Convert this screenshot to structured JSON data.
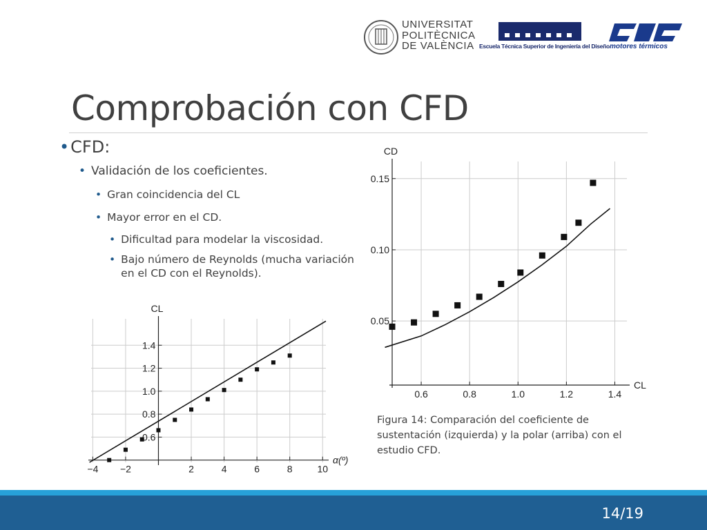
{
  "header": {
    "upv_lines": [
      "UNIVERSITAT",
      "POLITÈCNICA",
      "DE VALÈNCIA"
    ],
    "etsid_name": "Escuela Técnica Superior de Ingeniería del Diseño",
    "cmt_name": "motores térmicos"
  },
  "slide": {
    "title": "Comprobación con CFD",
    "page": "14/19",
    "bullets": {
      "l1": "CFD:",
      "l2": "Validación de los coeficientes.",
      "l3a": "Gran coincidencia del CL",
      "l3b": "Mayor error en el CD.",
      "l4a": "Dificultad para modelar la viscosidad.",
      "l4b": "Bajo número de Reynolds (mucha variación en el CD con el Reynolds)."
    },
    "caption": "Figura 14: Comparación del coeficiente de sustentación (izquierda) y la polar (arriba) con el estudio CFD."
  },
  "colors": {
    "accent": "#1f5f93",
    "accent_light": "#27a1d9",
    "text": "#404040"
  },
  "chart_data": [
    {
      "type": "scatter",
      "xlabel": "α(º)",
      "ylabel": "CL",
      "xticks": [
        -4,
        -2,
        2,
        4,
        6,
        8,
        10
      ],
      "yticks": [
        0.6,
        0.8,
        1.0,
        1.2,
        1.4
      ],
      "xlim": [
        -4.1,
        10.2
      ],
      "ylim": [
        0.38,
        1.63
      ],
      "grid": true,
      "points": [
        [
          -3,
          0.4
        ],
        [
          -2,
          0.49
        ],
        [
          -1,
          0.58
        ],
        [
          0,
          0.66
        ],
        [
          1,
          0.75
        ],
        [
          2,
          0.84
        ],
        [
          3,
          0.93
        ],
        [
          4,
          1.01
        ],
        [
          5,
          1.1
        ],
        [
          6,
          1.19
        ],
        [
          7,
          1.25
        ],
        [
          8,
          1.31
        ]
      ],
      "line": [
        [
          -4.2,
          0.38
        ],
        [
          10.2,
          1.61
        ]
      ]
    },
    {
      "type": "scatter",
      "xlabel": "CL",
      "ylabel": "CD",
      "xticks": [
        0.6,
        0.8,
        1.0,
        1.2,
        1.4
      ],
      "yticks": [
        0.05,
        0.1,
        0.15
      ],
      "xlim": [
        0.48,
        1.45
      ],
      "ylim": [
        0.005,
        0.162
      ],
      "grid": true,
      "points": [
        [
          0.48,
          0.046
        ],
        [
          0.57,
          0.049
        ],
        [
          0.66,
          0.055
        ],
        [
          0.75,
          0.061
        ],
        [
          0.84,
          0.067
        ],
        [
          0.93,
          0.076
        ],
        [
          1.01,
          0.084
        ],
        [
          1.1,
          0.096
        ],
        [
          1.19,
          0.109
        ],
        [
          1.25,
          0.119
        ],
        [
          1.31,
          0.147
        ]
      ],
      "curve": [
        [
          0.45,
          0.0315
        ],
        [
          0.6,
          0.0395
        ],
        [
          0.7,
          0.0475
        ],
        [
          0.8,
          0.0565
        ],
        [
          0.9,
          0.0665
        ],
        [
          1.0,
          0.0775
        ],
        [
          1.1,
          0.0895
        ],
        [
          1.2,
          0.1025
        ],
        [
          1.3,
          0.118
        ],
        [
          1.38,
          0.129
        ]
      ]
    }
  ]
}
